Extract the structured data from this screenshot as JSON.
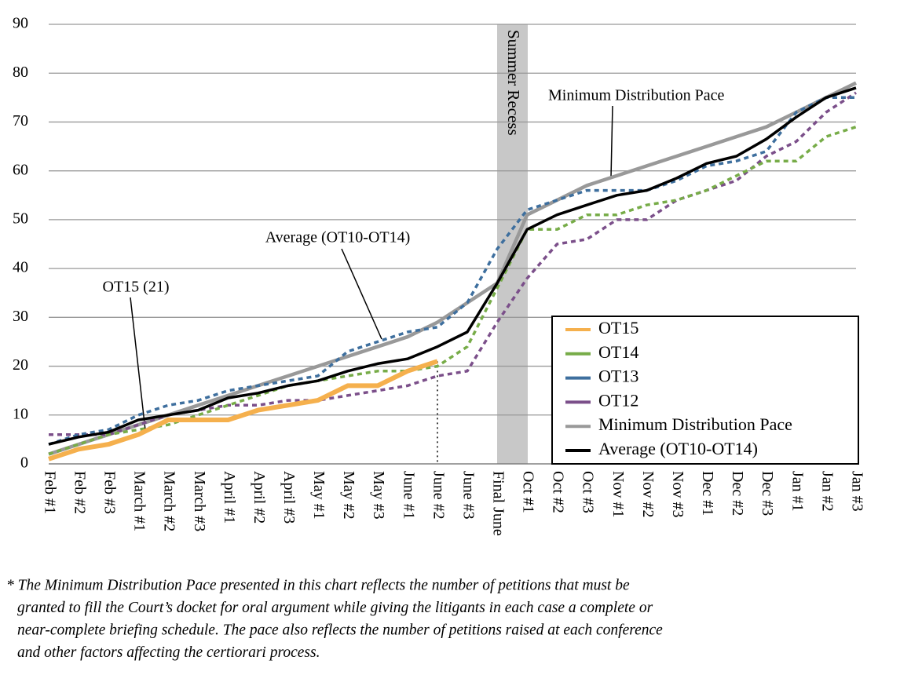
{
  "chart_data": {
    "type": "line",
    "categories": [
      "Feb #1",
      "Feb #2",
      "Feb #3",
      "March #1",
      "March #2",
      "March #3",
      "April #1",
      "April #2",
      "April #3",
      "May #1",
      "May #2",
      "May #3",
      "June #1",
      "June #2",
      "June #3",
      "Final June",
      "Oct #1",
      "Oct #2",
      "Oct #3",
      "Nov #1",
      "Nov #2",
      "Nov #3",
      "Dec #1",
      "Dec #2",
      "Dec #3",
      "Jan #1",
      "Jan #2",
      "Jan #3"
    ],
    "series": [
      {
        "name": "OT15",
        "color": "#f5b04d",
        "style": "solid",
        "width": 6,
        "values": [
          1,
          3,
          4,
          6,
          9,
          9,
          9,
          11,
          12,
          13,
          16,
          16,
          19,
          21,
          null,
          null,
          null,
          null,
          null,
          null,
          null,
          null,
          null,
          null,
          null,
          null,
          null,
          null
        ]
      },
      {
        "name": "OT14",
        "color": "#77ac48",
        "style": "dashed",
        "width": 3.5,
        "values": [
          2,
          4,
          6,
          7,
          8,
          10,
          12,
          14,
          16,
          17,
          18,
          19,
          19,
          20,
          24,
          36,
          48,
          48,
          51,
          51,
          53,
          54,
          56,
          59,
          62,
          62,
          67,
          69
        ]
      },
      {
        "name": "OT13",
        "color": "#3e6f9e",
        "style": "dashed",
        "width": 3.5,
        "values": [
          4,
          6,
          7,
          10,
          12,
          13,
          15,
          16,
          17,
          18,
          23,
          25,
          27,
          28,
          33,
          44,
          52,
          54,
          56,
          56,
          56,
          58,
          61,
          62,
          64,
          72,
          75,
          75
        ]
      },
      {
        "name": "OT12",
        "color": "#7b4f8a",
        "style": "dashed",
        "width": 3.5,
        "values": [
          6,
          6,
          6,
          8,
          10,
          11,
          12,
          12,
          13,
          13,
          14,
          15,
          16,
          18,
          19,
          29,
          38,
          45,
          46,
          50,
          50,
          54,
          56,
          58,
          63,
          66,
          72,
          76
        ]
      },
      {
        "name": "Minimum Distribution Pace",
        "color": "#999999",
        "style": "solid",
        "width": 4.5,
        "values": [
          2,
          4,
          6,
          8,
          10,
          12,
          14,
          16,
          18,
          20,
          22,
          24,
          26,
          29,
          33,
          37,
          51,
          54,
          57,
          59,
          61,
          63,
          65,
          67,
          69,
          72,
          75,
          78
        ]
      },
      {
        "name": "Average (OT10-OT14)",
        "color": "#000000",
        "style": "solid",
        "width": 3.5,
        "values": [
          4,
          5.5,
          6.5,
          9,
          10,
          11,
          13.5,
          14.5,
          16,
          17,
          19,
          20.5,
          21.5,
          24,
          27,
          37,
          48,
          51,
          53,
          55,
          56,
          58.5,
          61.5,
          63,
          66.5,
          71,
          75,
          77
        ]
      }
    ],
    "ylim": [
      0,
      90
    ],
    "yticks": [
      0,
      10,
      20,
      30,
      40,
      50,
      60,
      70,
      80,
      90
    ],
    "grid": true,
    "legend": "lower right",
    "annotations": [
      {
        "text": "Summer Recess"
      },
      {
        "text": "Minimum Distribution Pace"
      },
      {
        "text": "Average (OT10-OT14)"
      },
      {
        "text": "OT15 (21)"
      }
    ],
    "footnote": [
      "* The Minimum Distribution Pace presented in this chart reflects the number of petitions that must be",
      "granted to fill the Court’s docket for oral argument while giving the litigants in each case a complete or",
      "near-complete briefing schedule. The pace also reflects the number of petitions raised at each conference",
      "and other factors affecting the certiorari process."
    ]
  }
}
